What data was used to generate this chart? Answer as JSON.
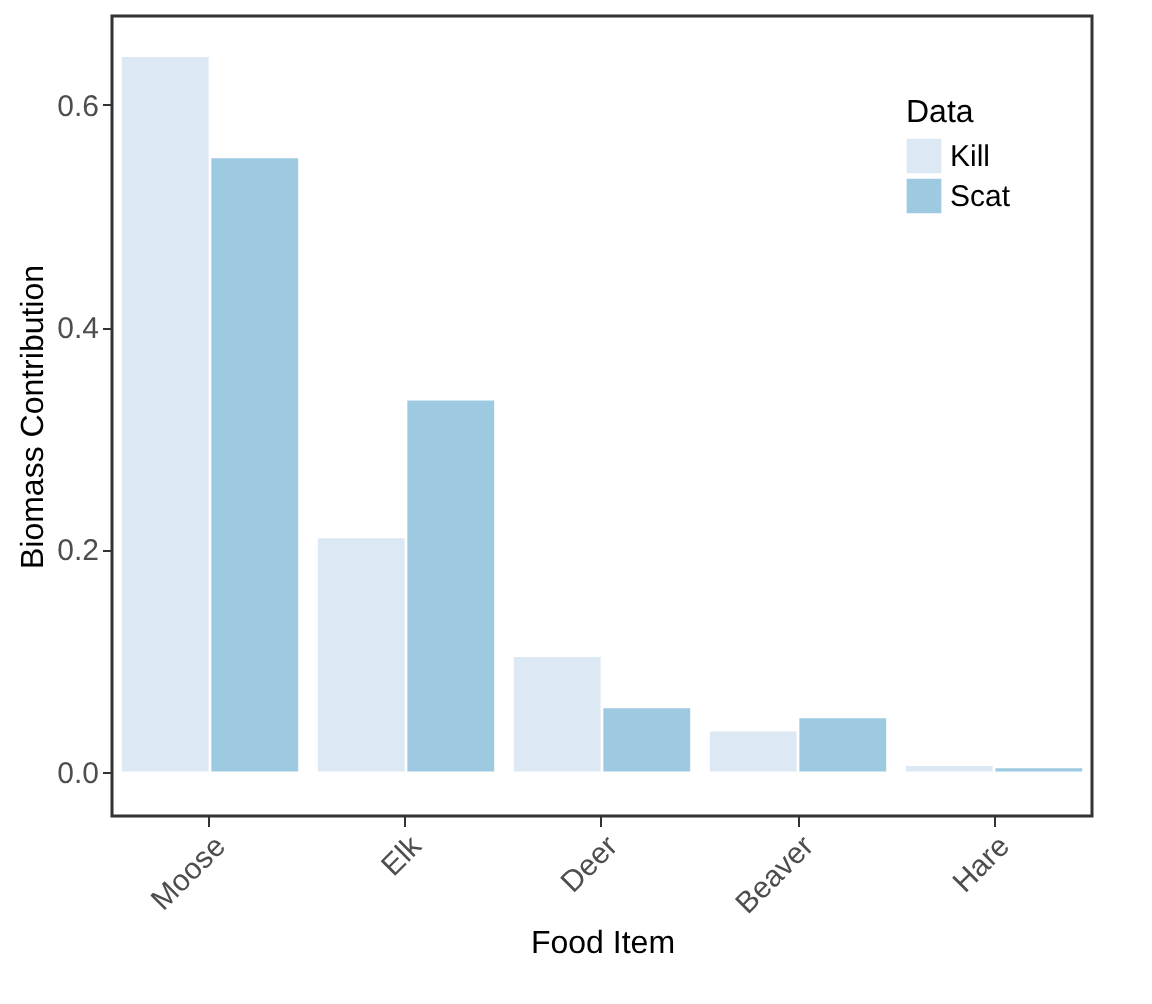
{
  "chart_data": {
    "type": "bar",
    "xlabel": "Food Item",
    "ylabel": "Biomass Contribution",
    "legend_title": "Data",
    "categories": [
      "Moose",
      "Elk",
      "Deer",
      "Beaver",
      "Hare"
    ],
    "series": [
      {
        "name": "Kill",
        "color": "#dce9f5",
        "values": [
          0.643,
          0.21,
          0.103,
          0.036,
          0.005
        ]
      },
      {
        "name": "Scat",
        "color": "#9ecae1",
        "values": [
          0.552,
          0.334,
          0.057,
          0.048,
          0.003
        ]
      }
    ],
    "ylim": [
      -0.04,
      0.68
    ],
    "yticks": [
      {
        "value": 0,
        "label": "0.0"
      },
      {
        "value": 0.2,
        "label": "0.2"
      },
      {
        "value": 0.4,
        "label": "0.4"
      },
      {
        "value": 0.6,
        "label": "0.6"
      }
    ],
    "grid": false,
    "legend": "top right"
  }
}
